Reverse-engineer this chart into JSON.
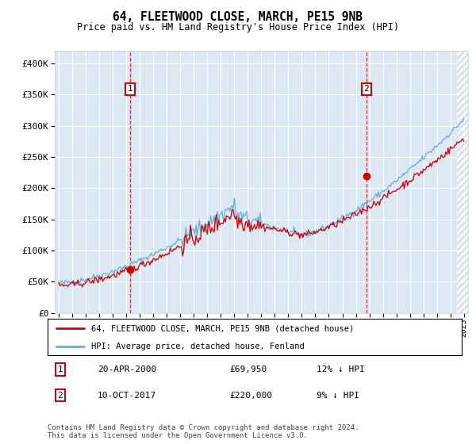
{
  "title": "64, FLEETWOOD CLOSE, MARCH, PE15 9NB",
  "subtitle": "Price paid vs. HM Land Registry's House Price Index (HPI)",
  "bg_color": "#dce9f5",
  "hpi_line_color": "#6baed6",
  "price_line_color": "#cc0000",
  "marker1_year": 2000.3,
  "marker1_price": 69950,
  "marker2_year": 2017.78,
  "marker2_price": 220000,
  "ylim": [
    0,
    420000
  ],
  "yticks": [
    0,
    50000,
    100000,
    150000,
    200000,
    250000,
    300000,
    350000,
    400000
  ],
  "xlim_start": 1994.7,
  "xlim_end": 2025.3,
  "legend_label1": "64, FLEETWOOD CLOSE, MARCH, PE15 9NB (detached house)",
  "legend_label2": "HPI: Average price, detached house, Fenland",
  "footer": "Contains HM Land Registry data © Crown copyright and database right 2024.\nThis data is licensed under the Open Government Licence v3.0.",
  "hatch_region_start": 2024.5,
  "hatch_region_end": 2025.3
}
